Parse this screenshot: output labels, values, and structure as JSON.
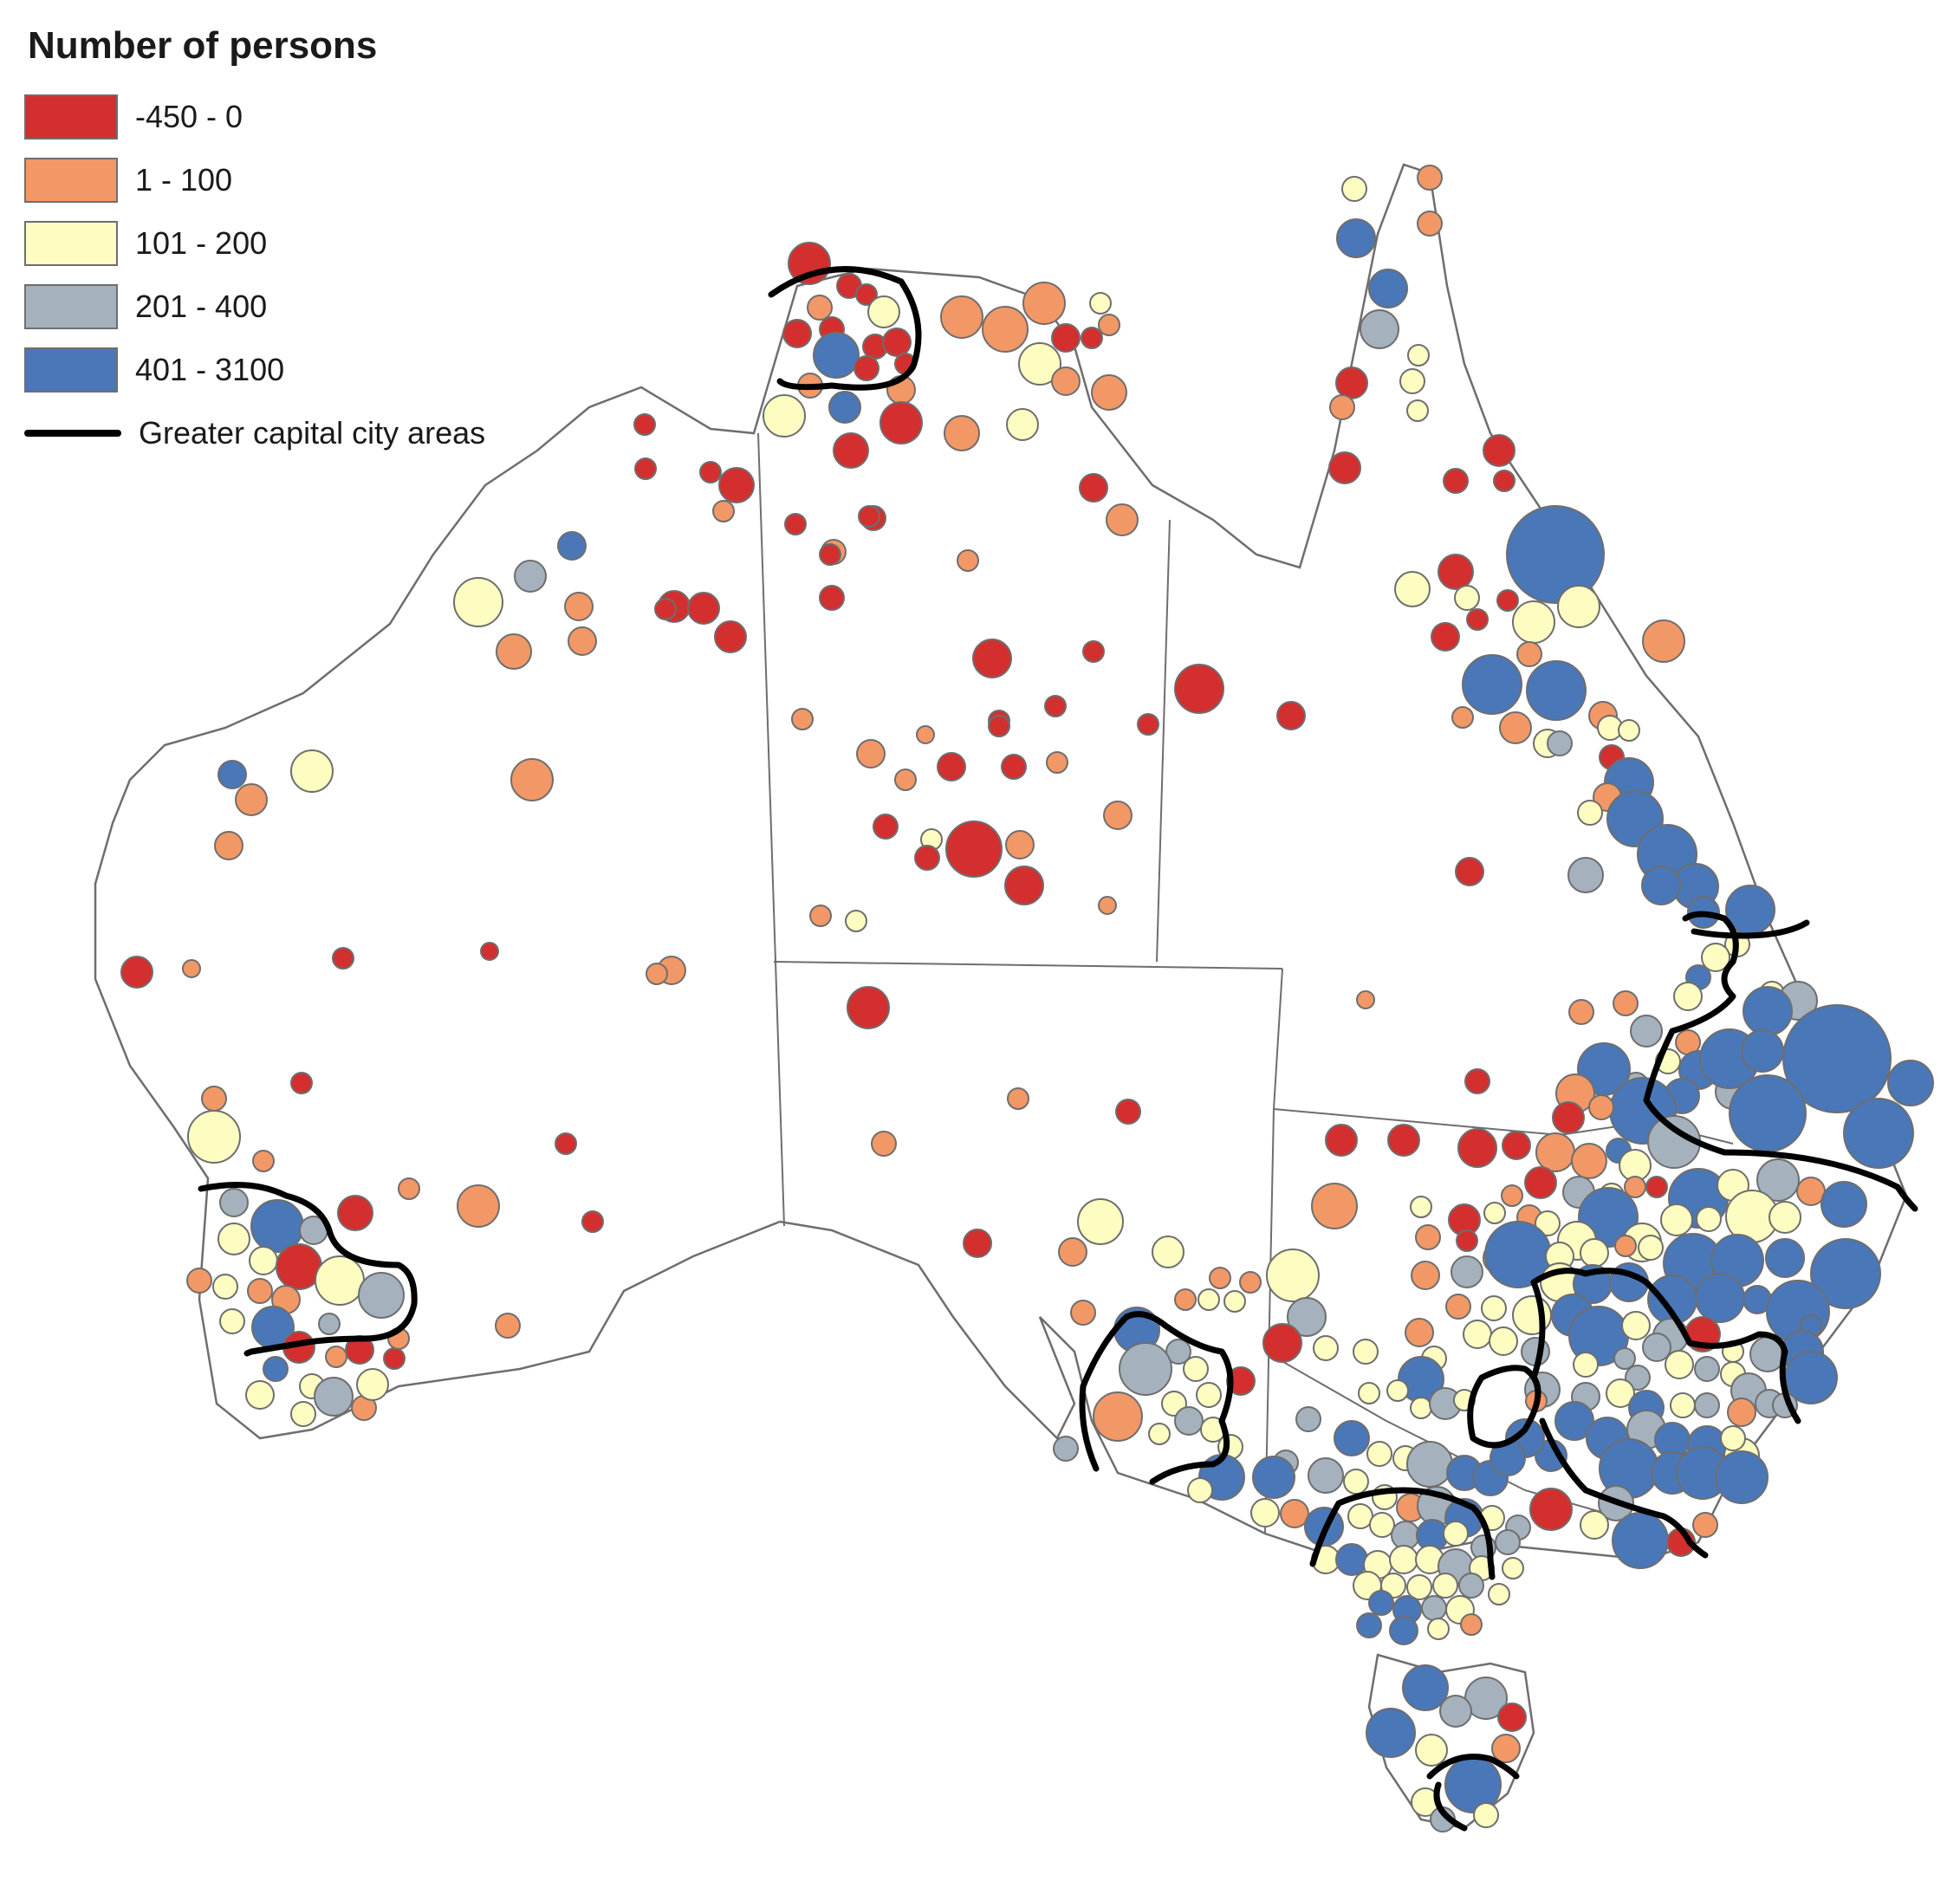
{
  "legend": {
    "title": "Number of persons",
    "classes": [
      {
        "label": "-450 - 0",
        "color": "#d32f2f"
      },
      {
        "label": "1 - 100",
        "color": "#f29866"
      },
      {
        "label": "101 - 200",
        "color": "#fdfdc2"
      },
      {
        "label": "201 - 400",
        "color": "#a5b2bd"
      },
      {
        "label": "401 - 3100",
        "color": "#4a77b8"
      }
    ],
    "boundary_label": "Greater capital city areas",
    "boundary_color": "#000000"
  },
  "colors": {
    "land_fill": "#ffffff",
    "outline": "#6e6e6e",
    "bubble_stroke": "#6e6e6e"
  }
}
